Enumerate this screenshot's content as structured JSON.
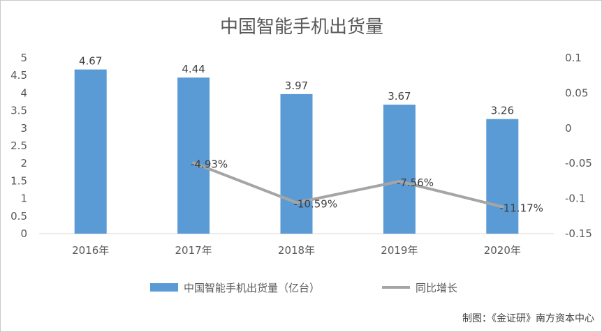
{
  "chart_data": {
    "type": "bar",
    "title": "中国智能手机出货量",
    "categories": [
      "2016年",
      "2017年",
      "2018年",
      "2019年",
      "2020年"
    ],
    "series": [
      {
        "name": "中国智能手机出货量（亿台）",
        "type": "bar",
        "axis": "left",
        "color": "#5b9bd5",
        "values": [
          4.67,
          4.44,
          3.97,
          3.67,
          3.26
        ],
        "labels": [
          "4.67",
          "4.44",
          "3.97",
          "3.67",
          "3.26"
        ]
      },
      {
        "name": "同比增长",
        "type": "line",
        "axis": "right",
        "color": "#a5a5a5",
        "values": [
          null,
          -0.0493,
          -0.1059,
          -0.0756,
          -0.1117
        ],
        "labels": [
          "",
          "-4.93%",
          "-10.59%",
          "-7.56%",
          "-11.17%"
        ]
      }
    ],
    "ylim": [
      0,
      5
    ],
    "yticks": [
      "0",
      "0.5",
      "1",
      "1.5",
      "2",
      "2.5",
      "3",
      "3.5",
      "4",
      "4.5",
      "5"
    ],
    "y2lim": [
      -0.15,
      0.1
    ],
    "y2ticks": [
      "-0.15",
      "-0.1",
      "-0.05",
      "0",
      "0.05",
      "0.1"
    ],
    "grid": false,
    "legend_position": "bottom"
  },
  "credit": "制图：《金证研》南方资本中心"
}
